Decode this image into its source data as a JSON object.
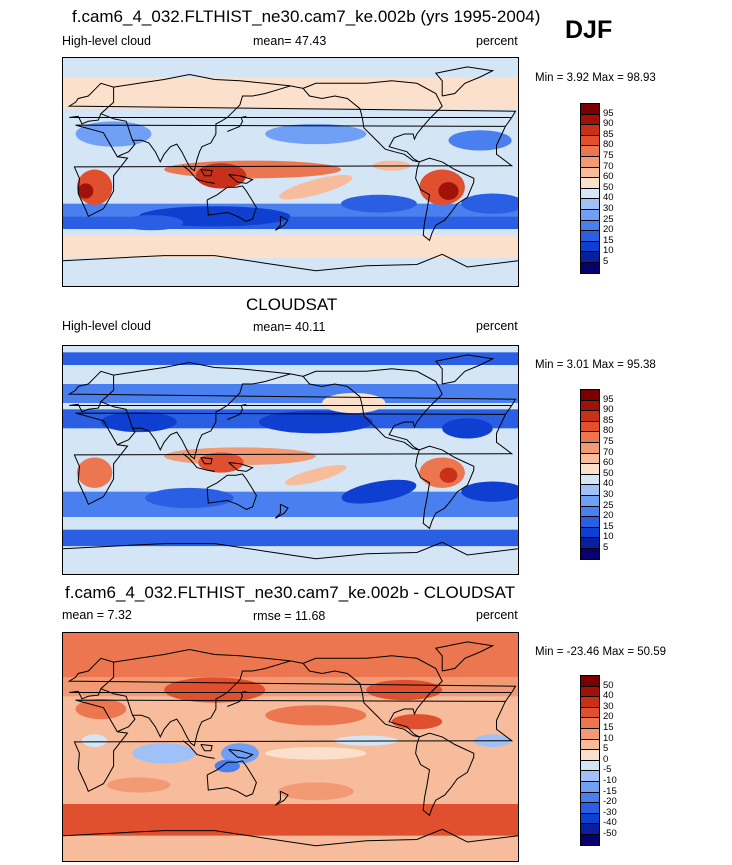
{
  "season": "DJF",
  "panels": [
    {
      "title": "f.cam6_4_032.FLTHIST_ne30.cam7_ke.002b (yrs 1995-2004)",
      "left_label": "High-level cloud",
      "center_label": "mean=  47.43",
      "right_label": "percent",
      "minmax": "Min =   3.92 Max =  98.93",
      "colorbar_labels": [
        "95",
        "90",
        "85",
        "80",
        "75",
        "70",
        "60",
        "50",
        "40",
        "30",
        "25",
        "20",
        "15",
        "10",
        "5"
      ]
    },
    {
      "title": "CLOUDSAT",
      "left_label": "High-level cloud",
      "center_label": "mean=  40.11",
      "right_label": "percent",
      "minmax": "Min =   3.01 Max =  95.38",
      "colorbar_labels": [
        "95",
        "90",
        "85",
        "80",
        "75",
        "70",
        "60",
        "50",
        "40",
        "30",
        "25",
        "20",
        "15",
        "10",
        "5"
      ]
    },
    {
      "title": "f.cam6_4_032.FLTHIST_ne30.cam7_ke.002b - CLOUDSAT",
      "left_label": "mean =   7.32",
      "center_label": "rmse =  11.68",
      "right_label": "percent",
      "minmax": "Min = -23.46 Max =  50.59",
      "colorbar_labels": [
        "50",
        "40",
        "30",
        "20",
        "15",
        "10",
        "5",
        "0",
        "-5",
        "-10",
        "-15",
        "-20",
        "-30",
        "-40",
        "-50"
      ]
    }
  ],
  "palette": [
    "#08006e",
    "#0a1fa0",
    "#0e3fd0",
    "#2a5fe4",
    "#4a7ff0",
    "#709ff6",
    "#a0c0f8",
    "#d4e5f5",
    "#fbe0cc",
    "#f7bc9c",
    "#f29a74",
    "#ec7650",
    "#e0502e",
    "#c8301a",
    "#a01208",
    "#780000"
  ],
  "chart_data": [
    {
      "type": "heatmap",
      "title": "f.cam6_4_032.FLTHIST_ne30.cam7_ke.002b (yrs 1995-2004)",
      "variable": "High-level cloud",
      "units": "percent",
      "mean": 47.43,
      "min": 3.92,
      "max": 98.93,
      "levels": [
        5,
        10,
        15,
        20,
        25,
        30,
        40,
        50,
        60,
        70,
        75,
        80,
        85,
        90,
        95
      ]
    },
    {
      "type": "heatmap",
      "title": "CLOUDSAT",
      "variable": "High-level cloud",
      "units": "percent",
      "mean": 40.11,
      "min": 3.01,
      "max": 95.38,
      "levels": [
        5,
        10,
        15,
        20,
        25,
        30,
        40,
        50,
        60,
        70,
        75,
        80,
        85,
        90,
        95
      ]
    },
    {
      "type": "heatmap",
      "title": "f.cam6_4_032.FLTHIST_ne30.cam7_ke.002b - CLOUDSAT",
      "units": "percent",
      "mean": 7.32,
      "rmse": 11.68,
      "min": -23.46,
      "max": 50.59,
      "levels": [
        -50,
        -40,
        -30,
        -20,
        -15,
        -10,
        -5,
        0,
        5,
        10,
        15,
        20,
        30,
        40,
        50
      ]
    }
  ]
}
